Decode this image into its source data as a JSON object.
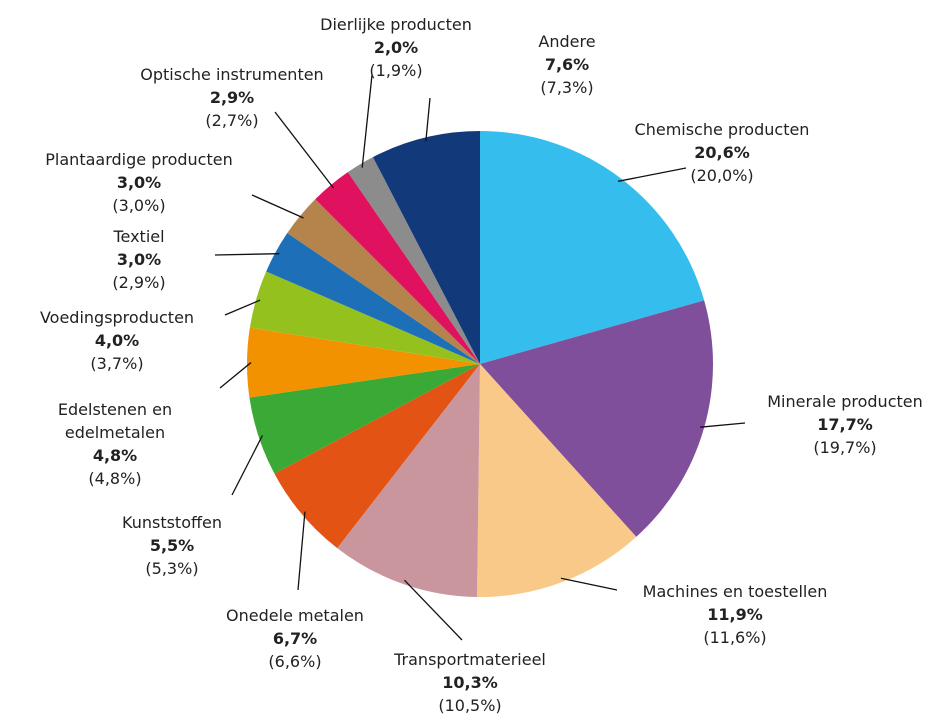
{
  "chart_data": {
    "type": "pie",
    "categories": [
      "Chemische producten",
      "Minerale producten",
      "Machines en toestellen",
      "Transportmaterieel",
      "Onedele metalen",
      "Kunststoffen",
      "Edelstenen en edelmetalen",
      "Voedingsproducten",
      "Textiel",
      "Plantaardige producten",
      "Optische instrumenten",
      "Dierlijke producten",
      "Andere"
    ],
    "values": [
      20.6,
      17.7,
      11.9,
      10.3,
      6.7,
      5.5,
      4.8,
      4.0,
      3.0,
      3.0,
      2.9,
      2.0,
      7.6
    ],
    "value_labels": [
      "20,6%",
      "17,7%",
      "11,9%",
      "10,3%",
      "6,7%",
      "5,5%",
      "4,8%",
      "4,0%",
      "3,0%",
      "3,0%",
      "2,9%",
      "2,0%",
      "7,6%"
    ],
    "previous_values": [
      20.0,
      19.7,
      11.6,
      10.5,
      6.6,
      5.3,
      4.8,
      3.7,
      2.9,
      3.0,
      2.7,
      1.9,
      7.3
    ],
    "previous_value_labels": [
      "(20,0%)",
      "(19,7%)",
      "(11,6%)",
      "(10,5%)",
      "(6,6%)",
      "(5,3%)",
      "(4,8%)",
      "(3,7%)",
      "(2,9%)",
      "(3,0%)",
      "(2,7%)",
      "(1,9%)",
      "(7,3%)"
    ],
    "colors": [
      "#35bdee",
      "#7f4f9b",
      "#f9c98a",
      "#c9969e",
      "#e25314",
      "#3aa935",
      "#f39200",
      "#95c11f",
      "#1d70b7",
      "#b5844d",
      "#e0115f",
      "#8c8c8c",
      "#12397a"
    ]
  }
}
